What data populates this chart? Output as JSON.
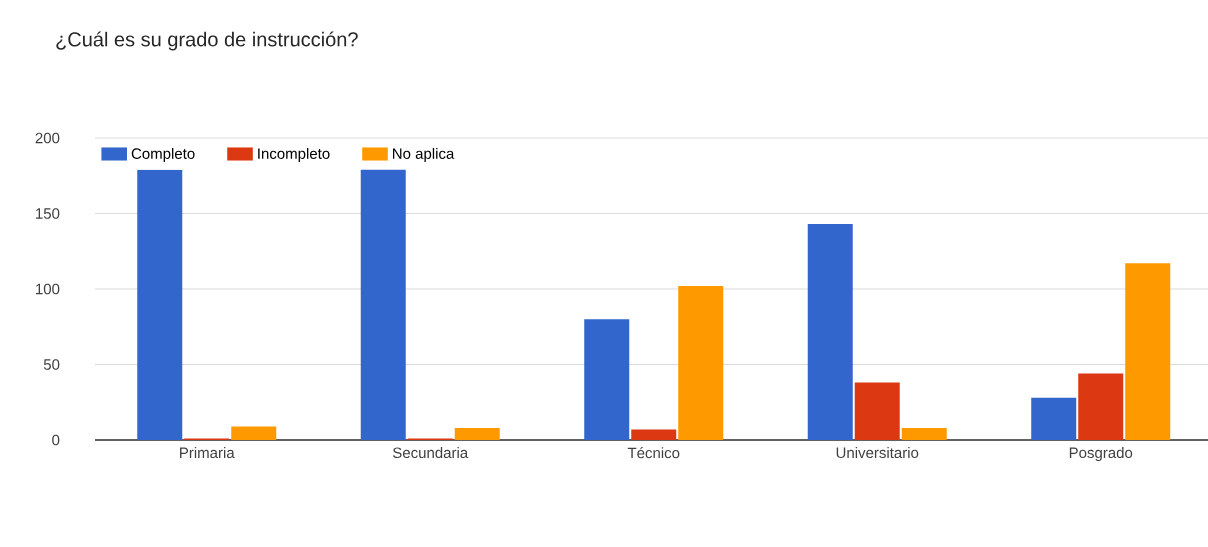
{
  "chart_data": {
    "type": "bar",
    "title": "¿Cuál es su grado de instrucción?",
    "categories": [
      "Primaria",
      "Secundaria",
      "Técnico",
      "Universitario",
      "Posgrado"
    ],
    "series": [
      {
        "name": "Completo",
        "color": "#3366cc",
        "values": [
          179,
          180,
          80,
          143,
          28
        ]
      },
      {
        "name": "Incompleto",
        "color": "#dc3912",
        "values": [
          1,
          1,
          7,
          38,
          44
        ]
      },
      {
        "name": "No aplica",
        "color": "#ff9900",
        "values": [
          9,
          8,
          102,
          8,
          117
        ]
      }
    ],
    "ylim": [
      0,
      200
    ],
    "yticks": [
      0,
      50,
      100,
      150,
      200
    ],
    "grid": "y",
    "legend": "top left"
  }
}
